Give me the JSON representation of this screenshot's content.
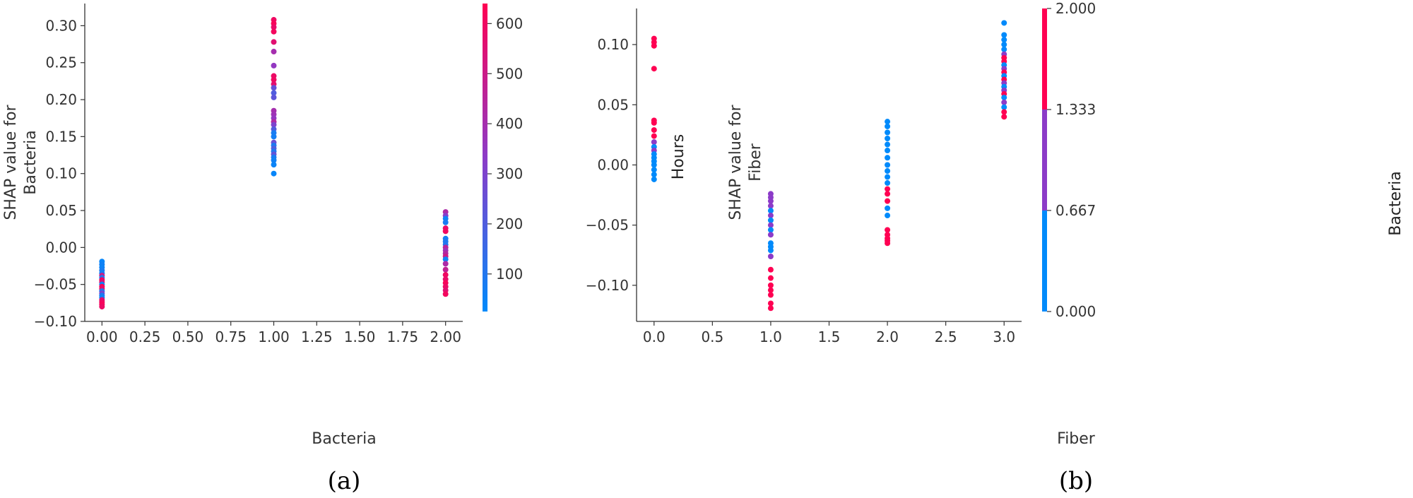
{
  "chart_data": [
    {
      "type": "scatter",
      "caption": "(a)",
      "xlabel": "Bacteria",
      "ylabel_lines": [
        "SHAP value for",
        "Bacteria"
      ],
      "xlim": [
        -0.1,
        2.1
      ],
      "ylim": [
        -0.1,
        0.33
      ],
      "xticks": [
        0.0,
        0.25,
        0.5,
        0.75,
        1.0,
        1.25,
        1.5,
        1.75,
        2.0
      ],
      "xtick_labels": [
        "0.00",
        "0.25",
        "0.50",
        "0.75",
        "1.00",
        "1.25",
        "1.50",
        "1.75",
        "2.00"
      ],
      "yticks": [
        -0.1,
        -0.05,
        0.0,
        0.05,
        0.1,
        0.15,
        0.2,
        0.25,
        0.3
      ],
      "ytick_labels": [
        "−0.10",
        "−0.05",
        "0.00",
        "0.05",
        "0.10",
        "0.15",
        "0.20",
        "0.25",
        "0.30"
      ],
      "grid": false,
      "colorbar": {
        "label": "Hours",
        "range": [
          25,
          640
        ],
        "ticks": [
          100,
          200,
          300,
          400,
          500,
          600
        ],
        "tick_labels": [
          "100",
          "200",
          "300",
          "400",
          "500",
          "600"
        ],
        "colors": [
          "#008afb",
          "#8c3bc8",
          "#ff0052"
        ]
      },
      "points": [
        {
          "x": 0.0,
          "y": -0.019,
          "c": 40
        },
        {
          "x": 0.0,
          "y": -0.023,
          "c": 60
        },
        {
          "x": 0.0,
          "y": -0.027,
          "c": 50
        },
        {
          "x": 0.0,
          "y": -0.031,
          "c": 80
        },
        {
          "x": 0.0,
          "y": -0.035,
          "c": 70
        },
        {
          "x": 0.0,
          "y": -0.038,
          "c": 500
        },
        {
          "x": 0.0,
          "y": -0.041,
          "c": 90
        },
        {
          "x": 0.0,
          "y": -0.044,
          "c": 600
        },
        {
          "x": 0.0,
          "y": -0.047,
          "c": 550
        },
        {
          "x": 0.0,
          "y": -0.05,
          "c": 60
        },
        {
          "x": 0.0,
          "y": -0.053,
          "c": 620
        },
        {
          "x": 0.0,
          "y": -0.056,
          "c": 580
        },
        {
          "x": 0.0,
          "y": -0.059,
          "c": 100
        },
        {
          "x": 0.0,
          "y": -0.062,
          "c": 300
        },
        {
          "x": 0.0,
          "y": -0.065,
          "c": 90
        },
        {
          "x": 0.0,
          "y": -0.068,
          "c": 50
        },
        {
          "x": 0.0,
          "y": -0.071,
          "c": 560
        },
        {
          "x": 0.0,
          "y": -0.074,
          "c": 600
        },
        {
          "x": 0.0,
          "y": -0.077,
          "c": 620
        },
        {
          "x": 0.0,
          "y": -0.08,
          "c": 590
        },
        {
          "x": 1.0,
          "y": 0.308,
          "c": 600
        },
        {
          "x": 1.0,
          "y": 0.303,
          "c": 620
        },
        {
          "x": 1.0,
          "y": 0.298,
          "c": 580
        },
        {
          "x": 1.0,
          "y": 0.292,
          "c": 610
        },
        {
          "x": 1.0,
          "y": 0.278,
          "c": 560
        },
        {
          "x": 1.0,
          "y": 0.265,
          "c": 400
        },
        {
          "x": 1.0,
          "y": 0.246,
          "c": 350
        },
        {
          "x": 1.0,
          "y": 0.232,
          "c": 590
        },
        {
          "x": 1.0,
          "y": 0.227,
          "c": 600
        },
        {
          "x": 1.0,
          "y": 0.221,
          "c": 570
        },
        {
          "x": 1.0,
          "y": 0.216,
          "c": 250
        },
        {
          "x": 1.0,
          "y": 0.209,
          "c": 200
        },
        {
          "x": 1.0,
          "y": 0.203,
          "c": 230
        },
        {
          "x": 1.0,
          "y": 0.185,
          "c": 400
        },
        {
          "x": 1.0,
          "y": 0.18,
          "c": 380
        },
        {
          "x": 1.0,
          "y": 0.175,
          "c": 350
        },
        {
          "x": 1.0,
          "y": 0.17,
          "c": 430
        },
        {
          "x": 1.0,
          "y": 0.166,
          "c": 300
        },
        {
          "x": 1.0,
          "y": 0.16,
          "c": 210
        },
        {
          "x": 1.0,
          "y": 0.155,
          "c": 80
        },
        {
          "x": 1.0,
          "y": 0.15,
          "c": 70
        },
        {
          "x": 1.0,
          "y": 0.142,
          "c": 260
        },
        {
          "x": 1.0,
          "y": 0.138,
          "c": 90
        },
        {
          "x": 1.0,
          "y": 0.134,
          "c": 200
        },
        {
          "x": 1.0,
          "y": 0.13,
          "c": 100
        },
        {
          "x": 1.0,
          "y": 0.126,
          "c": 240
        },
        {
          "x": 1.0,
          "y": 0.122,
          "c": 80
        },
        {
          "x": 1.0,
          "y": 0.118,
          "c": 60
        },
        {
          "x": 1.0,
          "y": 0.112,
          "c": 50
        },
        {
          "x": 1.0,
          "y": 0.1,
          "c": 40
        },
        {
          "x": 2.0,
          "y": 0.048,
          "c": 420
        },
        {
          "x": 2.0,
          "y": 0.043,
          "c": 320
        },
        {
          "x": 2.0,
          "y": 0.039,
          "c": 60
        },
        {
          "x": 2.0,
          "y": 0.034,
          "c": 80
        },
        {
          "x": 2.0,
          "y": 0.026,
          "c": 580
        },
        {
          "x": 2.0,
          "y": 0.022,
          "c": 600
        },
        {
          "x": 2.0,
          "y": 0.012,
          "c": 70
        },
        {
          "x": 2.0,
          "y": 0.008,
          "c": 90
        },
        {
          "x": 2.0,
          "y": 0.004,
          "c": 100
        },
        {
          "x": 2.0,
          "y": 0.0,
          "c": 450
        },
        {
          "x": 2.0,
          "y": -0.004,
          "c": 380
        },
        {
          "x": 2.0,
          "y": -0.008,
          "c": 430
        },
        {
          "x": 2.0,
          "y": -0.012,
          "c": 500
        },
        {
          "x": 2.0,
          "y": -0.016,
          "c": 60
        },
        {
          "x": 2.0,
          "y": -0.022,
          "c": 420
        },
        {
          "x": 2.0,
          "y": -0.03,
          "c": 470
        },
        {
          "x": 2.0,
          "y": -0.037,
          "c": 600
        },
        {
          "x": 2.0,
          "y": -0.043,
          "c": 580
        },
        {
          "x": 2.0,
          "y": -0.048,
          "c": 620
        },
        {
          "x": 2.0,
          "y": -0.053,
          "c": 590
        },
        {
          "x": 2.0,
          "y": -0.058,
          "c": 560
        },
        {
          "x": 2.0,
          "y": -0.063,
          "c": 610
        }
      ]
    },
    {
      "type": "scatter",
      "caption": "(b)",
      "xlabel": "Fiber",
      "ylabel_lines": [
        "SHAP value for",
        "Fiber"
      ],
      "xlim": [
        -0.15,
        3.15
      ],
      "ylim": [
        -0.13,
        0.13
      ],
      "xticks": [
        0.0,
        0.5,
        1.0,
        1.5,
        2.0,
        2.5,
        3.0
      ],
      "xtick_labels": [
        "0.0",
        "0.5",
        "1.0",
        "1.5",
        "2.0",
        "2.5",
        "3.0"
      ],
      "yticks": [
        -0.1,
        -0.05,
        0.0,
        0.05,
        0.1
      ],
      "ytick_labels": [
        "−0.10",
        "−0.05",
        "0.00",
        "0.05",
        "0.10"
      ],
      "grid": false,
      "colorbar": {
        "label": "Bacteria",
        "range": [
          0,
          2
        ],
        "ticks": [
          0,
          0.667,
          1.333,
          2
        ],
        "tick_labels": [
          "0.000",
          "0.667",
          "1.333",
          "2.000"
        ],
        "colors": [
          "#008afb",
          "#8c3bc8",
          "#ff0052"
        ]
      },
      "points": [
        {
          "x": 0.0,
          "y": 0.105,
          "c": 2
        },
        {
          "x": 0.0,
          "y": 0.102,
          "c": 2
        },
        {
          "x": 0.0,
          "y": 0.099,
          "c": 2
        },
        {
          "x": 0.0,
          "y": 0.08,
          "c": 2
        },
        {
          "x": 0.0,
          "y": 0.037,
          "c": 2
        },
        {
          "x": 0.0,
          "y": 0.035,
          "c": 2
        },
        {
          "x": 0.0,
          "y": 0.029,
          "c": 2
        },
        {
          "x": 0.0,
          "y": 0.024,
          "c": 2
        },
        {
          "x": 0.0,
          "y": 0.019,
          "c": 1
        },
        {
          "x": 0.0,
          "y": 0.015,
          "c": 0
        },
        {
          "x": 0.0,
          "y": 0.012,
          "c": 1
        },
        {
          "x": 0.0,
          "y": 0.009,
          "c": 0
        },
        {
          "x": 0.0,
          "y": 0.006,
          "c": 0
        },
        {
          "x": 0.0,
          "y": 0.003,
          "c": 0
        },
        {
          "x": 0.0,
          "y": 0.0,
          "c": 0
        },
        {
          "x": 0.0,
          "y": -0.004,
          "c": 0
        },
        {
          "x": 0.0,
          "y": -0.008,
          "c": 0
        },
        {
          "x": 0.0,
          "y": -0.012,
          "c": 0
        },
        {
          "x": 1.0,
          "y": -0.024,
          "c": 1
        },
        {
          "x": 1.0,
          "y": -0.027,
          "c": 1
        },
        {
          "x": 1.0,
          "y": -0.03,
          "c": 1
        },
        {
          "x": 1.0,
          "y": -0.034,
          "c": 1
        },
        {
          "x": 1.0,
          "y": -0.038,
          "c": 0
        },
        {
          "x": 1.0,
          "y": -0.042,
          "c": 1
        },
        {
          "x": 1.0,
          "y": -0.046,
          "c": 0
        },
        {
          "x": 1.0,
          "y": -0.05,
          "c": 1
        },
        {
          "x": 1.0,
          "y": -0.054,
          "c": 0
        },
        {
          "x": 1.0,
          "y": -0.058,
          "c": 1
        },
        {
          "x": 1.0,
          "y": -0.065,
          "c": 0
        },
        {
          "x": 1.0,
          "y": -0.068,
          "c": 0
        },
        {
          "x": 1.0,
          "y": -0.071,
          "c": 0
        },
        {
          "x": 1.0,
          "y": -0.076,
          "c": 1
        },
        {
          "x": 1.0,
          "y": -0.087,
          "c": 2
        },
        {
          "x": 1.0,
          "y": -0.094,
          "c": 2
        },
        {
          "x": 1.0,
          "y": -0.1,
          "c": 2
        },
        {
          "x": 1.0,
          "y": -0.104,
          "c": 2
        },
        {
          "x": 1.0,
          "y": -0.108,
          "c": 2
        },
        {
          "x": 1.0,
          "y": -0.115,
          "c": 2
        },
        {
          "x": 1.0,
          "y": -0.119,
          "c": 2
        },
        {
          "x": 2.0,
          "y": 0.036,
          "c": 0
        },
        {
          "x": 2.0,
          "y": 0.032,
          "c": 0
        },
        {
          "x": 2.0,
          "y": 0.027,
          "c": 0
        },
        {
          "x": 2.0,
          "y": 0.022,
          "c": 0
        },
        {
          "x": 2.0,
          "y": 0.017,
          "c": 0
        },
        {
          "x": 2.0,
          "y": 0.012,
          "c": 0
        },
        {
          "x": 2.0,
          "y": 0.006,
          "c": 0
        },
        {
          "x": 2.0,
          "y": 0.0,
          "c": 0
        },
        {
          "x": 2.0,
          "y": -0.005,
          "c": 0
        },
        {
          "x": 2.0,
          "y": -0.01,
          "c": 0
        },
        {
          "x": 2.0,
          "y": -0.015,
          "c": 0
        },
        {
          "x": 2.0,
          "y": -0.02,
          "c": 2
        },
        {
          "x": 2.0,
          "y": -0.024,
          "c": 2
        },
        {
          "x": 2.0,
          "y": -0.03,
          "c": 2
        },
        {
          "x": 2.0,
          "y": -0.036,
          "c": 0
        },
        {
          "x": 2.0,
          "y": -0.042,
          "c": 0
        },
        {
          "x": 2.0,
          "y": -0.054,
          "c": 2
        },
        {
          "x": 2.0,
          "y": -0.058,
          "c": 2
        },
        {
          "x": 2.0,
          "y": -0.061,
          "c": 2
        },
        {
          "x": 2.0,
          "y": -0.063,
          "c": 2
        },
        {
          "x": 2.0,
          "y": -0.065,
          "c": 2
        },
        {
          "x": 3.0,
          "y": 0.118,
          "c": 0
        },
        {
          "x": 3.0,
          "y": 0.108,
          "c": 0
        },
        {
          "x": 3.0,
          "y": 0.104,
          "c": 0
        },
        {
          "x": 3.0,
          "y": 0.1,
          "c": 0
        },
        {
          "x": 3.0,
          "y": 0.096,
          "c": 0
        },
        {
          "x": 3.0,
          "y": 0.092,
          "c": 1
        },
        {
          "x": 3.0,
          "y": 0.089,
          "c": 2
        },
        {
          "x": 3.0,
          "y": 0.086,
          "c": 2
        },
        {
          "x": 3.0,
          "y": 0.083,
          "c": 0
        },
        {
          "x": 3.0,
          "y": 0.08,
          "c": 1
        },
        {
          "x": 3.0,
          "y": 0.077,
          "c": 2
        },
        {
          "x": 3.0,
          "y": 0.074,
          "c": 0
        },
        {
          "x": 3.0,
          "y": 0.071,
          "c": 2
        },
        {
          "x": 3.0,
          "y": 0.068,
          "c": 1
        },
        {
          "x": 3.0,
          "y": 0.065,
          "c": 0
        },
        {
          "x": 3.0,
          "y": 0.062,
          "c": 1
        },
        {
          "x": 3.0,
          "y": 0.059,
          "c": 2
        },
        {
          "x": 3.0,
          "y": 0.056,
          "c": 0
        },
        {
          "x": 3.0,
          "y": 0.052,
          "c": 1
        },
        {
          "x": 3.0,
          "y": 0.048,
          "c": 0
        },
        {
          "x": 3.0,
          "y": 0.044,
          "c": 2
        },
        {
          "x": 3.0,
          "y": 0.04,
          "c": 2
        }
      ]
    }
  ]
}
